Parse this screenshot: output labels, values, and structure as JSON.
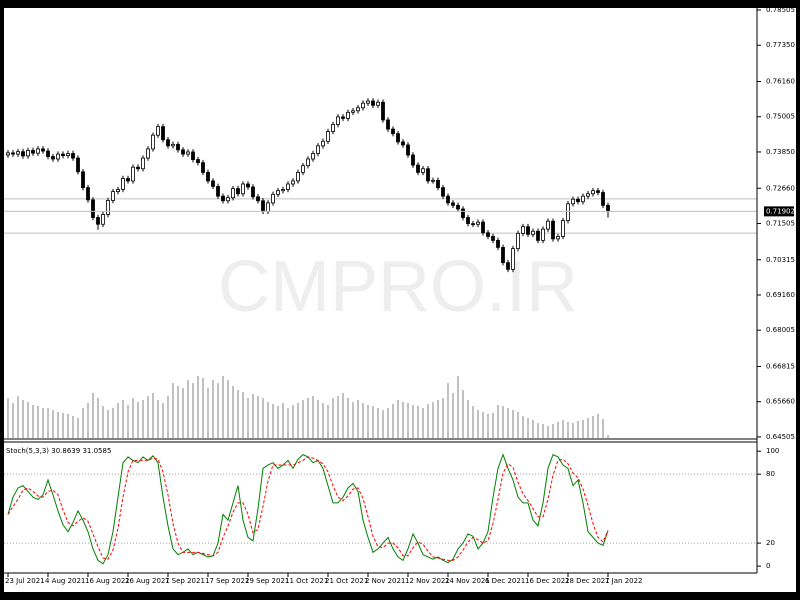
{
  "chart_data": [
    {
      "type": "candlestick",
      "watermark": "CMPRO.IR",
      "ylim": [
        0.64405,
        0.78833
      ],
      "yticks": [
        0.78505,
        {
          "value": 0.7735,
          "label": "0.77350"
        },
        {
          "value": 0.7616,
          "label": "0.76160"
        },
        0.75005,
        {
          "value": 0.7385,
          "label": "0.73850"
        },
        {
          "value": 0.7266,
          "label": "0.72660"
        },
        0.71505,
        0.70315,
        {
          "value": 0.6916,
          "label": "0.69160"
        },
        0.68005,
        0.66815,
        {
          "value": 0.6566,
          "label": "0.65660"
        },
        0.64505
      ],
      "hlines": [
        0.7231,
        0.7119
      ],
      "categories": [
        "23 Jul 2021",
        null,
        null,
        null,
        null,
        null,
        null,
        null,
        "4 Aug 2021",
        null,
        null,
        null,
        null,
        null,
        null,
        null,
        "16 Aug 2021",
        null,
        null,
        null,
        null,
        null,
        null,
        null,
        "26 Aug 2021",
        null,
        null,
        null,
        null,
        null,
        null,
        null,
        "7 Sep 2021",
        null,
        null,
        null,
        null,
        null,
        null,
        null,
        "17 Sep 2021",
        null,
        null,
        null,
        null,
        null,
        null,
        null,
        "29 Sep 2021",
        null,
        null,
        null,
        null,
        null,
        null,
        null,
        "11 Oct 2021",
        null,
        null,
        null,
        null,
        null,
        null,
        null,
        "21 Oct 2021",
        null,
        null,
        null,
        null,
        null,
        null,
        null,
        "2 Nov 2021",
        null,
        null,
        null,
        null,
        null,
        null,
        null,
        "12 Nov 2021",
        null,
        null,
        null,
        null,
        null,
        null,
        null,
        "24 Nov 2021",
        null,
        null,
        null,
        null,
        null,
        null,
        null,
        "6 Dec 2021",
        null,
        null,
        null,
        null,
        null,
        null,
        null,
        "16 Dec 2021",
        null,
        null,
        null,
        null,
        null,
        null,
        null,
        "28 Dec 2021",
        null,
        null,
        null,
        null,
        null,
        null,
        null,
        "7 Jan 2022"
      ],
      "open": [
        0.7375,
        0.7382,
        0.7378,
        0.7386,
        0.7372,
        0.739,
        0.7381,
        0.7395,
        0.7388,
        0.737,
        0.7362,
        0.7378,
        0.7373,
        0.738,
        0.7365,
        0.732,
        0.7268,
        0.7228,
        0.717,
        0.7148,
        0.718,
        0.7226,
        0.7255,
        0.7262,
        0.7298,
        0.729,
        0.7335,
        0.733,
        0.7365,
        0.7395,
        0.744,
        0.7468,
        0.7425,
        0.7405,
        0.741,
        0.7392,
        0.7378,
        0.7385,
        0.736,
        0.735,
        0.7318,
        0.729,
        0.7272,
        0.724,
        0.7225,
        0.7235,
        0.7265,
        0.7248,
        0.728,
        0.727,
        0.7238,
        0.7225,
        0.719,
        0.7218,
        0.7246,
        0.7258,
        0.7262,
        0.728,
        0.729,
        0.7318,
        0.734,
        0.7362,
        0.738,
        0.7405,
        0.742,
        0.7452,
        0.7475,
        0.75,
        0.7495,
        0.7515,
        0.752,
        0.753,
        0.7545,
        0.7552,
        0.7538,
        0.7548,
        0.749,
        0.746,
        0.7445,
        0.7418,
        0.7408,
        0.7375,
        0.7342,
        0.7318,
        0.733,
        0.729,
        0.7292,
        0.7268,
        0.724,
        0.7218,
        0.721,
        0.7198,
        0.717,
        0.715,
        0.7148,
        0.7155,
        0.712,
        0.7108,
        0.7095,
        0.7072,
        0.7022,
        0.7,
        0.7068,
        0.7118,
        0.714,
        0.7115,
        0.7125,
        0.7095,
        0.7132,
        0.7158,
        0.71,
        0.7108,
        0.716,
        0.7215,
        0.723,
        0.7222,
        0.724,
        0.7248,
        0.7258,
        0.7252,
        0.721
      ],
      "high": [
        0.7391,
        0.7391,
        0.7395,
        0.7395,
        0.7399,
        0.7399,
        0.7404,
        0.7404,
        0.7397,
        0.7379,
        0.7387,
        0.7387,
        0.7389,
        0.7389,
        0.7374,
        0.7329,
        0.7277,
        0.7237,
        0.7179,
        0.7189,
        0.7235,
        0.7264,
        0.7271,
        0.7307,
        0.7307,
        0.7344,
        0.7344,
        0.7374,
        0.7404,
        0.7449,
        0.7477,
        0.7477,
        0.7434,
        0.7419,
        0.7419,
        0.7401,
        0.7394,
        0.7394,
        0.7369,
        0.7359,
        0.7327,
        0.7299,
        0.7281,
        0.7249,
        0.7244,
        0.7274,
        0.7274,
        0.7289,
        0.7289,
        0.7279,
        0.7247,
        0.7234,
        0.7227,
        0.7255,
        0.7267,
        0.7271,
        0.7289,
        0.7299,
        0.7327,
        0.7349,
        0.7371,
        0.7389,
        0.7414,
        0.7429,
        0.7461,
        0.7484,
        0.7509,
        0.7509,
        0.7524,
        0.7529,
        0.7539,
        0.7554,
        0.7561,
        0.7561,
        0.7557,
        0.7557,
        0.7499,
        0.7469,
        0.7454,
        0.7427,
        0.7417,
        0.7384,
        0.7351,
        0.7339,
        0.7339,
        0.7301,
        0.7301,
        0.7277,
        0.7249,
        0.7227,
        0.7219,
        0.7207,
        0.7179,
        0.7159,
        0.7164,
        0.7164,
        0.7129,
        0.7117,
        0.7104,
        0.7081,
        0.7031,
        0.7077,
        0.7127,
        0.7149,
        0.7149,
        0.7134,
        0.7134,
        0.7141,
        0.7167,
        0.7167,
        0.7117,
        0.7169,
        0.7224,
        0.7239,
        0.7239,
        0.7249,
        0.7257,
        0.7267,
        0.7267,
        0.7261,
        0.7219
      ],
      "low": [
        0.7366,
        0.7369,
        0.7369,
        0.7363,
        0.7363,
        0.7372,
        0.7372,
        0.7379,
        0.7361,
        0.7353,
        0.7353,
        0.7364,
        0.7364,
        0.7356,
        0.7311,
        0.7259,
        0.7219,
        0.7161,
        0.713,
        0.7139,
        0.7171,
        0.7217,
        0.7246,
        0.7253,
        0.7281,
        0.7281,
        0.7321,
        0.7321,
        0.7356,
        0.7386,
        0.7431,
        0.7416,
        0.7396,
        0.7396,
        0.7383,
        0.7369,
        0.7369,
        0.7351,
        0.7341,
        0.7309,
        0.7281,
        0.7263,
        0.7231,
        0.7216,
        0.7216,
        0.7226,
        0.7239,
        0.7239,
        0.7261,
        0.7229,
        0.7216,
        0.7181,
        0.7181,
        0.7209,
        0.7237,
        0.7249,
        0.7253,
        0.7271,
        0.7281,
        0.7309,
        0.7331,
        0.7353,
        0.7371,
        0.7396,
        0.7411,
        0.7443,
        0.7466,
        0.7486,
        0.7486,
        0.7506,
        0.7511,
        0.7521,
        0.7536,
        0.7529,
        0.7529,
        0.7481,
        0.7451,
        0.7436,
        0.7409,
        0.7399,
        0.7366,
        0.7333,
        0.7309,
        0.7309,
        0.7281,
        0.7281,
        0.7259,
        0.7231,
        0.7209,
        0.7201,
        0.7189,
        0.7161,
        0.7141,
        0.7139,
        0.7139,
        0.7111,
        0.7099,
        0.7086,
        0.7063,
        0.7013,
        0.6991,
        0.6991,
        0.7059,
        0.7109,
        0.7106,
        0.7106,
        0.7086,
        0.7086,
        0.7123,
        0.7091,
        0.7091,
        0.7099,
        0.7151,
        0.7206,
        0.7213,
        0.7213,
        0.7231,
        0.7239,
        0.7243,
        0.7201,
        0.717
      ],
      "close": [
        0.7382,
        0.7378,
        0.7386,
        0.7372,
        0.739,
        0.7381,
        0.7395,
        0.7388,
        0.737,
        0.7362,
        0.7378,
        0.7373,
        0.738,
        0.7365,
        0.732,
        0.7268,
        0.7228,
        0.717,
        0.7148,
        0.718,
        0.7226,
        0.7255,
        0.7262,
        0.7298,
        0.729,
        0.7335,
        0.733,
        0.7365,
        0.7395,
        0.744,
        0.7468,
        0.7425,
        0.7405,
        0.741,
        0.7392,
        0.7378,
        0.7385,
        0.736,
        0.735,
        0.7318,
        0.729,
        0.7272,
        0.724,
        0.7225,
        0.7235,
        0.7265,
        0.7248,
        0.728,
        0.727,
        0.7238,
        0.7225,
        0.719,
        0.7218,
        0.7246,
        0.7258,
        0.7262,
        0.728,
        0.729,
        0.7318,
        0.734,
        0.7362,
        0.738,
        0.7405,
        0.742,
        0.7452,
        0.7475,
        0.75,
        0.7495,
        0.7515,
        0.752,
        0.753,
        0.7545,
        0.7552,
        0.7538,
        0.7548,
        0.749,
        0.746,
        0.7445,
        0.7418,
        0.7408,
        0.7375,
        0.7342,
        0.7318,
        0.733,
        0.729,
        0.7292,
        0.7268,
        0.724,
        0.7218,
        0.721,
        0.7198,
        0.717,
        0.715,
        0.7148,
        0.7155,
        0.712,
        0.7108,
        0.7095,
        0.7072,
        0.7022,
        0.7,
        0.7068,
        0.7118,
        0.714,
        0.7115,
        0.7125,
        0.7095,
        0.7132,
        0.7158,
        0.71,
        0.7108,
        0.716,
        0.7215,
        0.723,
        0.7222,
        0.724,
        0.7248,
        0.7258,
        0.7252,
        0.721,
        0.71902
      ],
      "volume_lim": [
        0,
        68
      ],
      "volume": [
        40,
        35,
        42,
        38,
        36,
        33,
        32,
        30,
        30,
        28,
        26,
        25,
        24,
        22,
        20,
        30,
        35,
        45,
        40,
        32,
        28,
        30,
        35,
        38,
        33,
        40,
        36,
        38,
        42,
        45,
        38,
        35,
        42,
        55,
        52,
        50,
        58,
        55,
        62,
        60,
        50,
        58,
        55,
        62,
        58,
        52,
        48,
        46,
        40,
        44,
        42,
        40,
        36,
        34,
        32,
        35,
        30,
        33,
        35,
        38,
        40,
        42,
        38,
        35,
        33,
        40,
        42,
        45,
        40,
        36,
        38,
        35,
        33,
        32,
        30,
        28,
        30,
        34,
        38,
        36,
        35,
        33,
        32,
        30,
        34,
        36,
        38,
        40,
        55,
        45,
        62,
        48,
        38,
        32,
        28,
        26,
        24,
        25,
        33,
        32,
        30,
        28,
        26,
        22,
        20,
        18,
        15,
        14,
        12,
        14,
        16,
        18,
        16,
        15,
        17,
        18,
        20,
        22,
        24,
        19,
        3
      ]
    },
    {
      "type": "line",
      "title": "Stoch(5,3,3)",
      "ylim": [
        -6,
        108
      ],
      "yticks": [
        0,
        20,
        80,
        100
      ],
      "levels": [
        20,
        80
      ],
      "series": [
        {
          "name": "main",
          "color": "#008000",
          "values": [
            45,
            60,
            68,
            70,
            65,
            60,
            58,
            62,
            75,
            62,
            48,
            36,
            30,
            38,
            48,
            40,
            30,
            15,
            5,
            2,
            10,
            30,
            60,
            90,
            95,
            92,
            90,
            95,
            92,
            96,
            90,
            60,
            35,
            15,
            10,
            12,
            15,
            10,
            12,
            10,
            8,
            9,
            20,
            45,
            40,
            55,
            70,
            40,
            25,
            22,
            50,
            85,
            88,
            90,
            85,
            88,
            92,
            85,
            93,
            97,
            95,
            90,
            92,
            85,
            70,
            55,
            55,
            60,
            68,
            72,
            65,
            40,
            25,
            12,
            15,
            20,
            25,
            15,
            8,
            5,
            15,
            28,
            20,
            10,
            8,
            6,
            8,
            5,
            3,
            6,
            15,
            20,
            28,
            26,
            15,
            20,
            30,
            60,
            85,
            97,
            85,
            75,
            60,
            55,
            55,
            40,
            35,
            55,
            85,
            97,
            95,
            88,
            85,
            70,
            75,
            55,
            30,
            25,
            20,
            18,
            30.8639
          ]
        },
        {
          "name": "signal",
          "color": "#ff0000",
          "values": [
            45,
            52,
            58,
            66,
            68,
            65,
            61,
            60,
            65,
            66,
            62,
            49,
            38,
            35,
            39,
            42,
            39,
            28,
            17,
            7,
            6,
            14,
            33,
            60,
            82,
            92,
            92,
            92,
            92,
            94,
            93,
            82,
            62,
            37,
            20,
            12,
            12,
            12,
            12,
            11,
            10,
            9,
            12,
            25,
            35,
            47,
            55,
            55,
            45,
            29,
            32,
            52,
            74,
            88,
            88,
            88,
            88,
            88,
            90,
            92,
            95,
            94,
            92,
            89,
            82,
            70,
            60,
            57,
            61,
            67,
            68,
            59,
            43,
            26,
            17,
            16,
            20,
            20,
            16,
            9,
            9,
            16,
            21,
            19,
            13,
            8,
            7,
            6,
            5,
            5,
            8,
            14,
            21,
            25,
            23,
            20,
            22,
            37,
            58,
            81,
            89,
            86,
            73,
            63,
            57,
            50,
            43,
            43,
            58,
            79,
            92,
            93,
            89,
            81,
            77,
            67,
            53,
            37,
            25,
            21,
            31.0585
          ]
        }
      ]
    }
  ]
}
